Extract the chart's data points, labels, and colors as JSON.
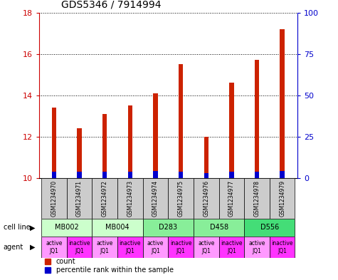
{
  "title": "GDS5346 / 7914994",
  "samples": [
    "GSM1234970",
    "GSM1234971",
    "GSM1234972",
    "GSM1234973",
    "GSM1234974",
    "GSM1234975",
    "GSM1234976",
    "GSM1234977",
    "GSM1234978",
    "GSM1234979"
  ],
  "count_values": [
    13.4,
    12.4,
    13.1,
    13.5,
    14.1,
    15.5,
    12.0,
    14.6,
    15.7,
    17.2
  ],
  "percentile_values": [
    3.5,
    3.5,
    3.5,
    3.5,
    4.0,
    3.5,
    3.0,
    3.5,
    3.5,
    4.0
  ],
  "ylim_left": [
    10,
    18
  ],
  "ylim_right": [
    0,
    100
  ],
  "yticks_left": [
    10,
    12,
    14,
    16,
    18
  ],
  "yticks_right": [
    0,
    25,
    50,
    75,
    100
  ],
  "cell_lines": [
    {
      "label": "MB002",
      "color": "#ccffcc",
      "span": [
        0,
        2
      ]
    },
    {
      "label": "MB004",
      "color": "#ccffcc",
      "span": [
        2,
        4
      ]
    },
    {
      "label": "D283",
      "color": "#88ee99",
      "span": [
        4,
        6
      ]
    },
    {
      "label": "D458",
      "color": "#88ee99",
      "span": [
        6,
        8
      ]
    },
    {
      "label": "D556",
      "color": "#44dd77",
      "span": [
        8,
        10
      ]
    }
  ],
  "agents": [
    "active\nJQ1",
    "inactive\nJQ1",
    "active\nJQ1",
    "inactive\nJQ1",
    "active\nJQ1",
    "inactive\nJQ1",
    "active\nJQ1",
    "inactive\nJQ1",
    "active\nJQ1",
    "inactive\nJQ1"
  ],
  "active_color": "#ff99ff",
  "inactive_color": "#ff33ff",
  "bar_color_red": "#cc2200",
  "bar_color_blue": "#0000cc",
  "bar_width": 0.18,
  "grid_color": "#000000",
  "sample_box_color": "#cccccc",
  "ylabel_left_color": "#cc0000",
  "ylabel_right_color": "#0000cc",
  "title_fontsize": 10,
  "tick_fontsize": 8,
  "sample_fontsize": 5.5,
  "cell_fontsize": 7,
  "agent_fontsize": 5.5,
  "legend_fontsize": 7
}
